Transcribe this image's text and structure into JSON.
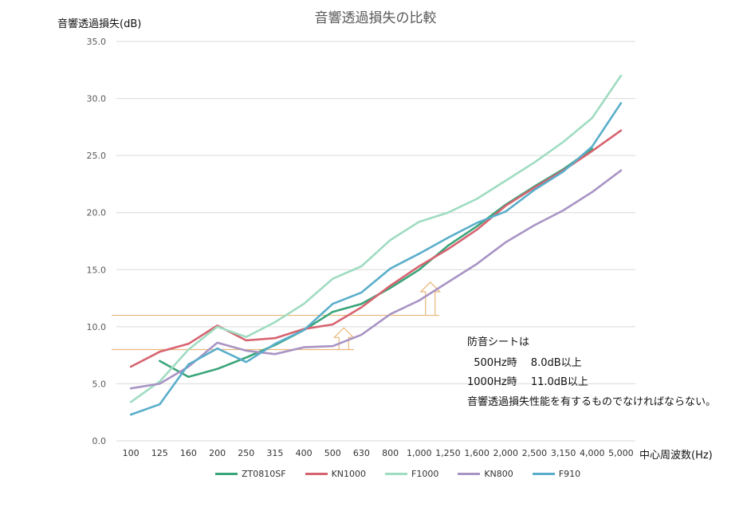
{
  "chart_data": {
    "type": "line",
    "title": "音響透過損失の比較",
    "ylabel": "音響透過損失(dB)",
    "xlabel": "中心周波数(Hz)",
    "ylim": [
      0,
      35
    ],
    "yticks": [
      "0.0",
      "5.0",
      "10.0",
      "15.0",
      "20.0",
      "25.0",
      "30.0",
      "35.0"
    ],
    "categories": [
      "100",
      "125",
      "160",
      "200",
      "250",
      "315",
      "400",
      "500",
      "630",
      "800",
      "1,000",
      "1,250",
      "1,600",
      "2,000",
      "2,500",
      "3,150",
      "4,000",
      "5,000"
    ],
    "grid": true,
    "legend_position": "bottom",
    "series": [
      {
        "name": "ZT0810SF",
        "color": "#3aa57a",
        "values": [
          null,
          7.0,
          5.6,
          6.3,
          7.3,
          8.4,
          9.7,
          11.3,
          12.0,
          13.4,
          15.0,
          17.1,
          18.8,
          20.7,
          22.3,
          23.8,
          25.6,
          null
        ]
      },
      {
        "name": "KN1000",
        "color": "#d66470",
        "values": [
          6.5,
          7.8,
          8.5,
          10.1,
          8.8,
          9.0,
          9.8,
          10.2,
          11.7,
          13.6,
          15.3,
          16.8,
          18.5,
          20.6,
          22.2,
          23.7,
          25.4,
          27.2
        ]
      },
      {
        "name": "F1000",
        "color": "#9fdcc1",
        "values": [
          3.4,
          5.2,
          8.0,
          10.0,
          9.1,
          10.4,
          12.0,
          14.2,
          15.3,
          17.6,
          19.2,
          20.0,
          21.2,
          22.8,
          24.4,
          26.2,
          28.3,
          32.0
        ]
      },
      {
        "name": "KN800",
        "color": "#a894c4",
        "values": [
          4.6,
          5.0,
          6.5,
          8.6,
          7.9,
          7.6,
          8.2,
          8.3,
          9.3,
          11.1,
          12.3,
          13.9,
          15.5,
          17.4,
          18.9,
          20.2,
          21.8,
          23.7
        ]
      },
      {
        "name": "F910",
        "color": "#5aaecb",
        "values": [
          2.3,
          3.2,
          6.7,
          8.1,
          6.9,
          8.5,
          9.7,
          12.0,
          13.0,
          15.1,
          16.4,
          17.8,
          19.1,
          20.1,
          22.0,
          23.6,
          25.8,
          29.6
        ]
      }
    ],
    "annotations": [
      {
        "type": "reference-line",
        "value": 8.0,
        "color": "#e8b77a",
        "arrow_at": "500"
      },
      {
        "type": "reference-line",
        "value": 11.0,
        "color": "#e8b77a",
        "arrow_at": "1,000"
      }
    ]
  },
  "note": {
    "line1": "防音シートは",
    "line2": "  500Hz時 　8.0dB以上",
    "line3": "1000Hz時 　11.0dB以上",
    "line4": "音響透過損失性能を有するものでなければならない。"
  }
}
